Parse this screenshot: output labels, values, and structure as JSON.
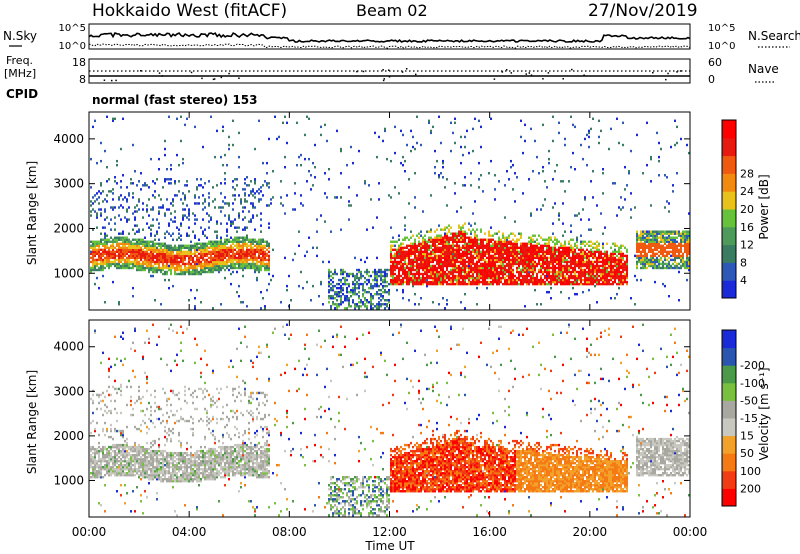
{
  "header": {
    "station": "Hokkaido West (fitACF)",
    "beam": "Beam 02",
    "date": "27/Nov/2019"
  },
  "left_labels": {
    "nsky": "N.Sky",
    "freq_line1": "Freq.",
    "freq_line2": "[MHz]",
    "cpid": "CPID"
  },
  "right_labels": {
    "nsearch": "N.Search",
    "nave": "Nave"
  },
  "cpid_text": "normal (fast stereo) 153",
  "colors": {
    "power_scale": [
      "#1a2ad8",
      "#2d58b8",
      "#3a7c62",
      "#4e9a5a",
      "#66c23a",
      "#e8c21a",
      "#f28a10",
      "#f05a10",
      "#e81a10",
      "#ff0000"
    ],
    "velocity_scale": [
      "#ff0000",
      "#f23b12",
      "#f57a14",
      "#f2a12a",
      "#c8c8c0",
      "#a8a8a0",
      "#7ac040",
      "#4a9a4a",
      "#2a56b0",
      "#1a2ad8"
    ]
  },
  "chart_data": [
    {
      "type": "line",
      "name": "noise-panel",
      "left_axis": {
        "ticks": [
          "10^5",
          "10^0"
        ]
      },
      "right_axis": {
        "ticks": [
          "10^5",
          "10^0"
        ]
      },
      "series": [
        {
          "name": "N.Sky"
        },
        {
          "name": "N.Search"
        }
      ]
    },
    {
      "type": "scatter",
      "name": "frequency-nave-panel",
      "left_axis": {
        "ticks": [
          "18",
          "8"
        ],
        "ylim": [
          8,
          18
        ]
      },
      "right_axis": {
        "ticks": [
          "60",
          "0"
        ],
        "ylim": [
          0,
          60
        ]
      },
      "series": [
        {
          "name": "Freq."
        },
        {
          "name": "Nave"
        }
      ]
    },
    {
      "type": "heatmap",
      "name": "power-panel",
      "ylabel": "Slant Range [km]",
      "yticks": [
        "1000",
        "2000",
        "3000",
        "4000"
      ],
      "ylim": [
        180,
        4600
      ],
      "xlim_hours": [
        0,
        24
      ],
      "colorbar": {
        "label": "Power [dB]",
        "ticks": [
          "4",
          "8",
          "12",
          "16",
          "20",
          "24",
          "28"
        ],
        "range": [
          0,
          32
        ]
      }
    },
    {
      "type": "heatmap",
      "name": "velocity-panel",
      "ylabel": "Slant Range [km]",
      "yticks": [
        "1000",
        "2000",
        "3000",
        "4000"
      ],
      "ylim": [
        180,
        4600
      ],
      "xlim_hours": [
        0,
        24
      ],
      "colorbar": {
        "label": "Velocity [m s⁻¹]",
        "ticks": [
          "-200",
          "-100",
          "-50",
          "-15",
          "15",
          "50",
          "100",
          "200"
        ]
      }
    }
  ],
  "xaxis": {
    "label": "Time UT",
    "ticks": [
      "00:00",
      "04:00",
      "08:00",
      "12:00",
      "16:00",
      "20:00",
      "00:00"
    ]
  }
}
